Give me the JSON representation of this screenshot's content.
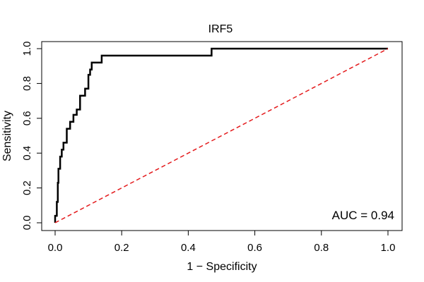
{
  "chart_data": {
    "type": "line",
    "title": "IRF5",
    "xlabel": "1 − Specificity",
    "ylabel": "Sensitivity",
    "xlim": [
      0,
      1
    ],
    "ylim": [
      0,
      1
    ],
    "xticks": [
      0.0,
      0.2,
      0.4,
      0.6,
      0.8,
      1.0
    ],
    "yticks": [
      0.0,
      0.2,
      0.4,
      0.6,
      0.8,
      1.0
    ],
    "xtick_labels": [
      "0.0",
      "0.2",
      "0.4",
      "0.6",
      "0.8",
      "1.0"
    ],
    "ytick_labels": [
      "0.0",
      "0.2",
      "0.4",
      "0.6",
      "0.8",
      "1.0"
    ],
    "grid": false,
    "series": [
      {
        "name": "ROC",
        "color": "#000000",
        "style": "solid",
        "x": [
          0.0,
          0.0,
          0.005,
          0.005,
          0.008,
          0.008,
          0.01,
          0.01,
          0.015,
          0.015,
          0.02,
          0.02,
          0.025,
          0.025,
          0.035,
          0.035,
          0.045,
          0.045,
          0.055,
          0.055,
          0.065,
          0.065,
          0.075,
          0.075,
          0.09,
          0.09,
          0.1,
          0.1,
          0.105,
          0.105,
          0.11,
          0.11,
          0.14,
          0.14,
          0.47,
          0.47,
          1.0
        ],
        "y": [
          0.0,
          0.04,
          0.04,
          0.12,
          0.12,
          0.23,
          0.23,
          0.31,
          0.31,
          0.38,
          0.38,
          0.42,
          0.42,
          0.46,
          0.46,
          0.54,
          0.54,
          0.58,
          0.58,
          0.62,
          0.62,
          0.65,
          0.65,
          0.73,
          0.73,
          0.77,
          0.77,
          0.85,
          0.85,
          0.88,
          0.88,
          0.92,
          0.92,
          0.96,
          0.96,
          1.0,
          1.0
        ]
      },
      {
        "name": "Reference",
        "color": "#e41a1c",
        "style": "dashed",
        "x": [
          0,
          1
        ],
        "y": [
          0,
          1
        ]
      }
    ],
    "annotations": [
      {
        "text": "AUC = 0.94",
        "position": "bottom-right"
      }
    ]
  }
}
